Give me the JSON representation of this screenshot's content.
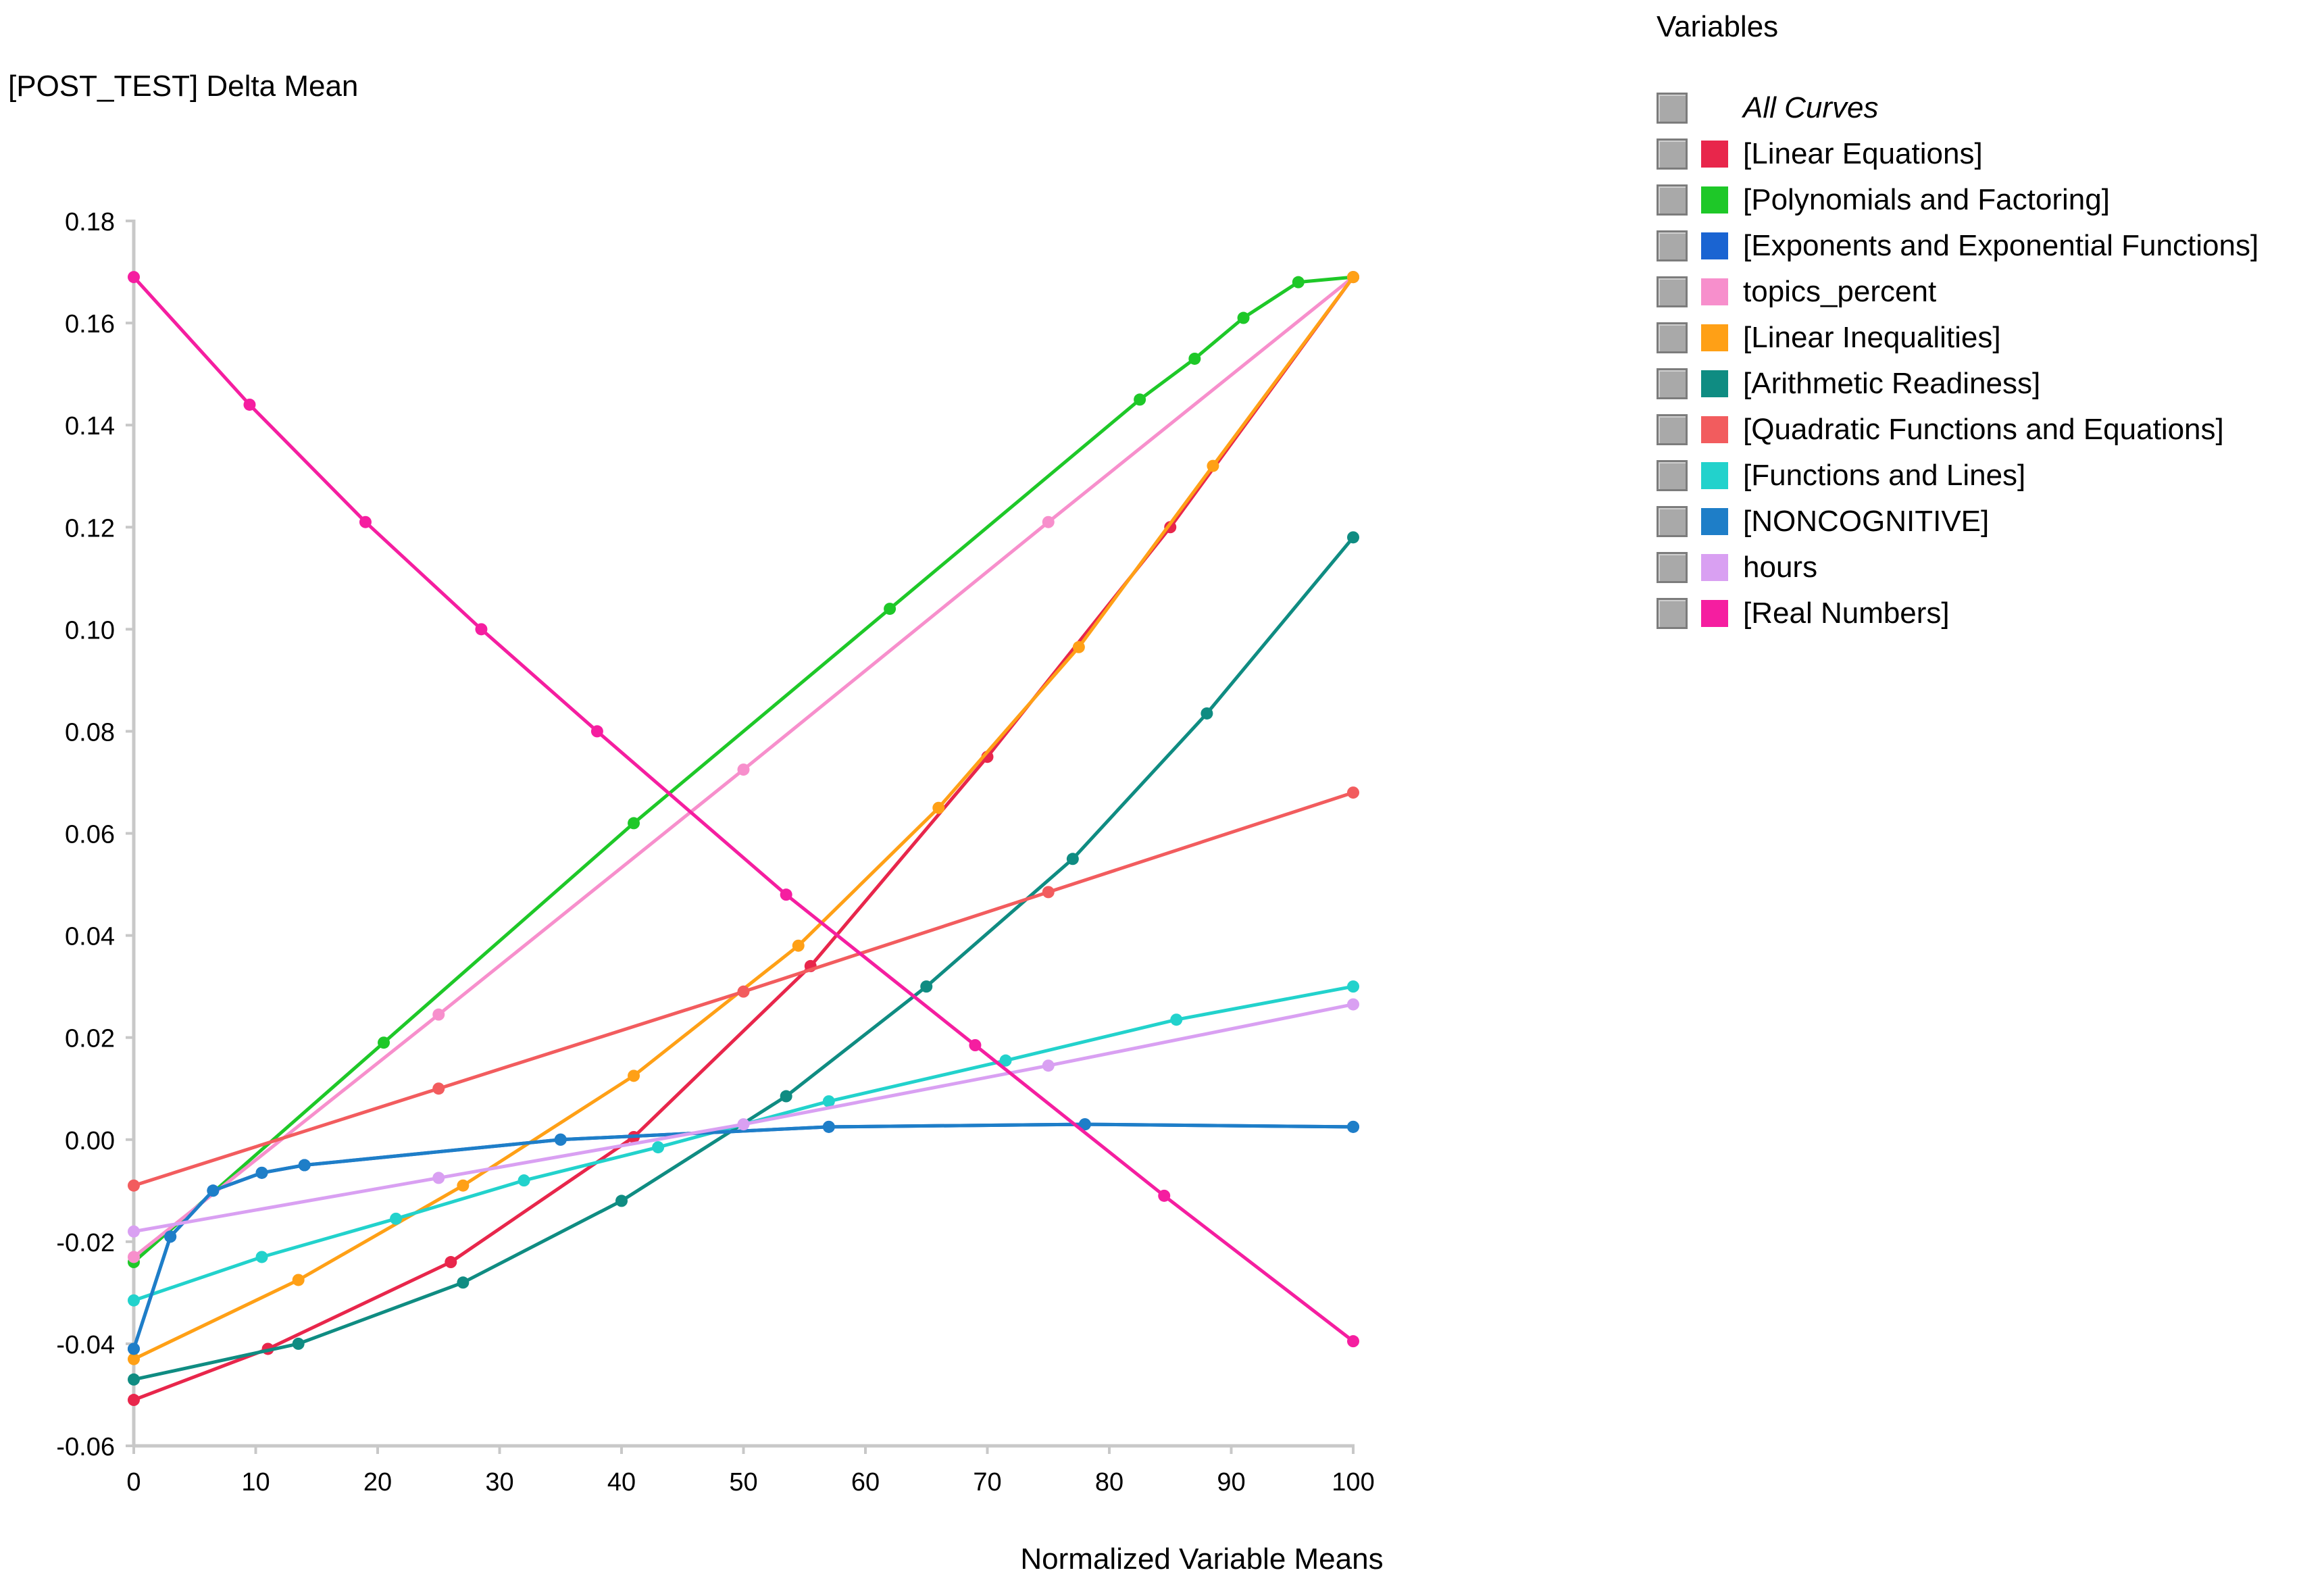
{
  "chart_data": {
    "type": "line",
    "title": "[POST_TEST] Delta Mean",
    "xlabel": "Normalized Variable Means",
    "ylabel": "[POST_TEST] Delta Mean",
    "xlim": [
      0,
      100
    ],
    "ylim": [
      -0.06,
      0.18
    ],
    "x_ticks": [
      0,
      10,
      20,
      30,
      40,
      50,
      60,
      70,
      80,
      90,
      100
    ],
    "x_tick_labels": [
      "0",
      "10",
      "20",
      "30",
      "40",
      "50",
      "60",
      "70",
      "80",
      "90",
      "100"
    ],
    "y_ticks": [
      -0.06,
      -0.04,
      -0.02,
      0.0,
      0.02,
      0.04,
      0.06,
      0.08,
      0.1,
      0.12,
      0.14,
      0.16,
      0.18
    ],
    "y_tick_labels": [
      "-0.06",
      "-0.04",
      "-0.02",
      "0.00",
      "0.02",
      "0.04",
      "0.06",
      "0.08",
      "0.10",
      "0.12",
      "0.14",
      "0.16",
      "0.18"
    ],
    "grid": false,
    "legend_title": "Variables",
    "legend_position": "right",
    "legend_all_label": "All Curves",
    "series": [
      {
        "name": "[Linear Equations]",
        "color": "#e8264b",
        "x": [
          0,
          11,
          26,
          41,
          55.5,
          70,
          85,
          100
        ],
        "y": [
          -0.051,
          -0.041,
          -0.024,
          0.0005,
          0.034,
          0.075,
          0.12,
          0.169
        ]
      },
      {
        "name": "[Polynomials and Factoring]",
        "color": "#1ec828",
        "x": [
          0,
          20.5,
          41,
          62,
          82.5,
          87,
          91,
          95.5,
          100
        ],
        "y": [
          -0.024,
          0.019,
          0.062,
          0.104,
          0.145,
          0.153,
          0.161,
          0.168,
          0.169
        ]
      },
      {
        "name": "[Exponents and Exponential Functions]",
        "color": "#1a64d2",
        "x": [
          0,
          3,
          6.5,
          10.5,
          14,
          35,
          57,
          78,
          100
        ],
        "y": [
          -0.041,
          -0.019,
          -0.01,
          -0.0065,
          -0.005,
          0.0,
          0.0025,
          0.003,
          0.0025
        ]
      },
      {
        "name": "topics_percent",
        "color": "#f78fcc",
        "x": [
          0,
          25,
          50,
          75,
          100
        ],
        "y": [
          -0.023,
          0.0245,
          0.0725,
          0.121,
          0.169
        ]
      },
      {
        "name": "[Linear Inequalities]",
        "color": "#ffa016",
        "x": [
          0,
          13.5,
          27,
          41,
          54.5,
          66,
          77.5,
          88.5,
          100
        ],
        "y": [
          -0.043,
          -0.0275,
          -0.009,
          0.0125,
          0.038,
          0.065,
          0.0965,
          0.132,
          0.169
        ]
      },
      {
        "name": "[Arithmetic Readiness]",
        "color": "#0f8c82",
        "x": [
          0,
          13.5,
          27,
          40,
          53.5,
          65,
          77,
          88,
          100
        ],
        "y": [
          -0.047,
          -0.04,
          -0.028,
          -0.012,
          0.0085,
          0.03,
          0.055,
          0.0835,
          0.118
        ]
      },
      {
        "name": "[Quadratic Functions and Equations]",
        "color": "#f25c5e",
        "x": [
          0,
          25,
          50,
          75,
          100
        ],
        "y": [
          -0.009,
          0.01,
          0.029,
          0.0485,
          0.068
        ]
      },
      {
        "name": "[Functions and Lines]",
        "color": "#22d2cc",
        "x": [
          0,
          10.5,
          21.5,
          32,
          43,
          57,
          71.5,
          85.5,
          100
        ],
        "y": [
          -0.0315,
          -0.023,
          -0.0155,
          -0.008,
          -0.0015,
          0.0075,
          0.0155,
          0.0235,
          0.03
        ]
      },
      {
        "name": "[NONCOGNITIVE]",
        "color": "#1e7ec8",
        "x": [
          0,
          3,
          6.5,
          10.5,
          14,
          35,
          57,
          78,
          100
        ],
        "y": [
          -0.041,
          -0.019,
          -0.01,
          -0.0065,
          -0.005,
          0.0,
          0.0025,
          0.003,
          0.0025
        ]
      },
      {
        "name": "hours",
        "color": "#d9a0f2",
        "x": [
          0,
          25,
          50,
          75,
          100
        ],
        "y": [
          -0.018,
          -0.0075,
          0.003,
          0.0145,
          0.0265
        ]
      },
      {
        "name": "[Real Numbers]",
        "color": "#f51ea0",
        "x": [
          0,
          9.5,
          19,
          28.5,
          38,
          53.5,
          69,
          84.5,
          100
        ],
        "y": [
          0.169,
          0.144,
          0.121,
          0.1,
          0.08,
          0.048,
          0.0185,
          -0.011,
          -0.0395
        ]
      }
    ]
  }
}
